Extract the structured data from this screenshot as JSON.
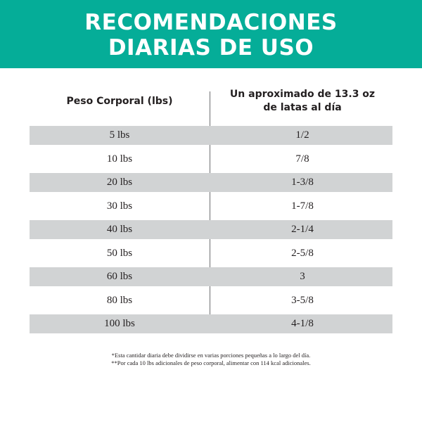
{
  "header": {
    "title_line_1": "RECOMENDACIONES",
    "title_line_2": "DIARIAS DE USO",
    "band_color": "#05ad98"
  },
  "table": {
    "column_headers": {
      "weight": "Peso Corporal (lbs)",
      "amount_line_1": "Un aproximado de 13.3 oz",
      "amount_line_2": "de latas al día"
    },
    "row_shade_color": "#d1d3d4",
    "rows": [
      {
        "weight": "5 lbs",
        "amount": "1/2",
        "shaded": true
      },
      {
        "weight": "10 lbs",
        "amount": "7/8",
        "shaded": false
      },
      {
        "weight": "20 lbs",
        "amount": "1-3/8",
        "shaded": true
      },
      {
        "weight": "30 lbs",
        "amount": "1-7/8",
        "shaded": false
      },
      {
        "weight": "40 lbs",
        "amount": "2-1/4",
        "shaded": true
      },
      {
        "weight": "50 lbs",
        "amount": "2-5/8",
        "shaded": false
      },
      {
        "weight": "60 lbs",
        "amount": "3",
        "shaded": true
      },
      {
        "weight": "80 lbs",
        "amount": "3-5/8",
        "shaded": false
      },
      {
        "weight": "100 lbs",
        "amount": "4-1/8",
        "shaded": true
      }
    ]
  },
  "footnotes": {
    "note_1": "*Esta cantidar diaria debe dividirse en varias porciones pequeñas a lo largo del día.",
    "note_2": "**Por cada 10 lbs adicionales de peso corporal, alimentar con 114 kcal adicionales."
  }
}
